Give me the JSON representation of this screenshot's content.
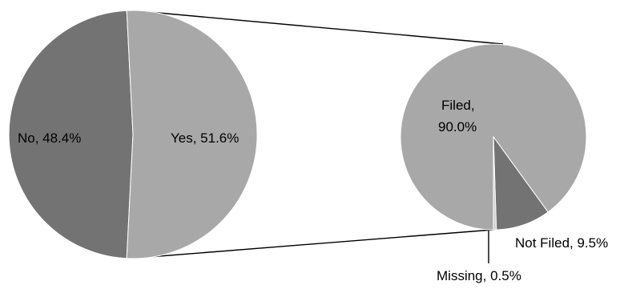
{
  "chart_data": {
    "type": "pie",
    "subtype": "pie-of-pie",
    "colors": {
      "dark": "#737373",
      "light": "#a8a8a8",
      "missing": "#cfcfcf",
      "connector": "#000000",
      "background": "#ffffff"
    },
    "main_pie": {
      "slices": [
        {
          "label": "No",
          "value": 48.4,
          "display": "No, 48.4%",
          "color": "dark"
        },
        {
          "label": "Yes",
          "value": 51.6,
          "display": "Yes, 51.6%",
          "color": "light"
        }
      ]
    },
    "secondary_pie": {
      "expands": "Yes",
      "slices": [
        {
          "label": "Filed",
          "value": 90.0,
          "display_lines": [
            "Filed,",
            "90.0%"
          ],
          "color": "light"
        },
        {
          "label": "Missing",
          "value": 0.5,
          "display": "Missing, 0.5%",
          "color": "missing"
        },
        {
          "label": "Not Filed",
          "value": 9.5,
          "display": "Not Filed, 9.5%",
          "color": "dark"
        }
      ]
    }
  }
}
